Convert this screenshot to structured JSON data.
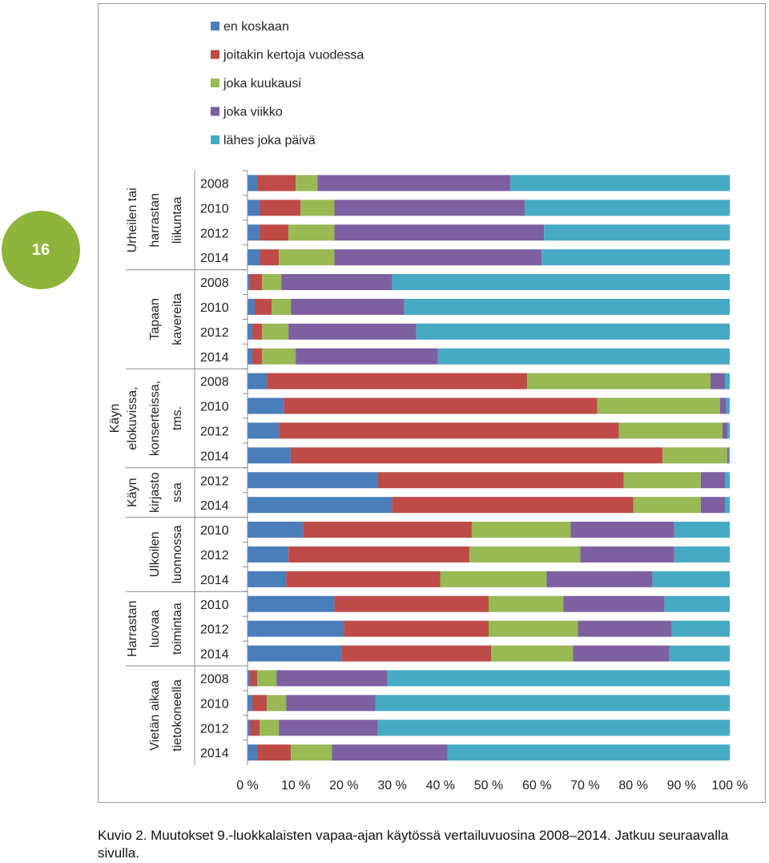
{
  "page_number": "16",
  "caption": "Kuvio 2. Muutokset 9.-luokkalaisten vapaa-ajan käytössä vertailuvuosina 2008–2014. Jatkuu seuraavalla sivulla.",
  "colors": {
    "series": [
      "#4a7ebb",
      "#be4b48",
      "#98b954",
      "#7d60a0",
      "#46aac4"
    ],
    "badge": "#8fb43c",
    "frame": "#9a9a9a"
  },
  "chart_data": {
    "type": "bar",
    "orientation": "horizontal",
    "stacked": true,
    "percent": true,
    "legend_position": "top",
    "series_names": [
      "en koskaan",
      "joitakin kertoja vuodessa",
      "joka kuukausi",
      "joka viikko",
      "lähes joka päivä"
    ],
    "x_ticks": [
      "0 %",
      "10 %",
      "20 %",
      "30 %",
      "40 %",
      "50 %",
      "60 %",
      "70 %",
      "80 %",
      "90 %",
      "100 %"
    ],
    "xlim": [
      0,
      100
    ],
    "groups": [
      {
        "label": [
          "Urheilen tai",
          "harrastan",
          "liikuntaa"
        ],
        "rows": [
          {
            "year": "2008",
            "values": [
              2,
              8,
              4.5,
              40,
              45.5
            ]
          },
          {
            "year": "2010",
            "values": [
              2.5,
              8.5,
              7,
              39.5,
              42.5
            ]
          },
          {
            "year": "2012",
            "values": [
              2.5,
              6,
              9.5,
              43.5,
              38.5
            ]
          },
          {
            "year": "2014",
            "values": [
              2.5,
              4,
              11.5,
              43,
              39
            ]
          }
        ]
      },
      {
        "label": [
          "Tapaan",
          "kavereita"
        ],
        "rows": [
          {
            "year": "2008",
            "values": [
              0.5,
              2.5,
              4,
              23,
              70
            ]
          },
          {
            "year": "2010",
            "values": [
              1.5,
              3.5,
              4,
              23.5,
              67.5
            ]
          },
          {
            "year": "2012",
            "values": [
              1,
              2,
              5.5,
              26.5,
              65
            ]
          },
          {
            "year": "2014",
            "values": [
              1,
              2,
              7,
              29.5,
              60.5
            ]
          }
        ]
      },
      {
        "label": [
          "Käyn",
          "elokuvissa,",
          "konserteissa,",
          "tms."
        ],
        "rows": [
          {
            "year": "2008",
            "values": [
              4,
              54,
              38,
              3,
              1
            ]
          },
          {
            "year": "2010",
            "values": [
              7.5,
              65,
              25.5,
              1.3,
              0.7
            ]
          },
          {
            "year": "2012",
            "values": [
              6.5,
              70.5,
              21.5,
              1,
              0.5
            ]
          },
          {
            "year": "2014",
            "values": [
              9,
              77.5,
              13.5,
              0.3,
              0.2
            ]
          }
        ]
      },
      {
        "label": [
          "Käyn",
          "kirjasto",
          "ssa"
        ],
        "rows": [
          {
            "year": "2012",
            "values": [
              27,
              51,
              16,
              5,
              1
            ]
          },
          {
            "year": "2014",
            "values": [
              30,
              50,
              14,
              5,
              1
            ]
          }
        ]
      },
      {
        "label": [
          "Ulkoilen",
          "luonnossa"
        ],
        "rows": [
          {
            "year": "2010",
            "values": [
              11.5,
              35,
              20.5,
              21.5,
              11.5
            ]
          },
          {
            "year": "2012",
            "values": [
              8.5,
              37.5,
              23,
              19.5,
              11.5
            ]
          },
          {
            "year": "2014",
            "values": [
              8,
              32,
              22,
              22,
              16
            ]
          }
        ]
      },
      {
        "label": [
          "Harrastan",
          "luovaa",
          "toimintaa"
        ],
        "rows": [
          {
            "year": "2010",
            "values": [
              18,
              32,
              15.5,
              21,
              13.5
            ]
          },
          {
            "year": "2012",
            "values": [
              20,
              30,
              18.5,
              19.5,
              12
            ]
          },
          {
            "year": "2014",
            "values": [
              19.5,
              31,
              17,
              20,
              12.5
            ]
          }
        ]
      },
      {
        "label": [
          "Vietän aikaa",
          "tietokoneella"
        ],
        "rows": [
          {
            "year": "2008",
            "values": [
              0.5,
              1.5,
              4,
              23,
              71
            ]
          },
          {
            "year": "2010",
            "values": [
              1,
              3,
              4,
              18.5,
              73.5
            ]
          },
          {
            "year": "2012",
            "values": [
              0.5,
              2,
              4,
              20.5,
              73
            ]
          },
          {
            "year": "2014",
            "values": [
              2,
              7,
              8.5,
              24,
              58.5
            ]
          }
        ]
      }
    ]
  }
}
